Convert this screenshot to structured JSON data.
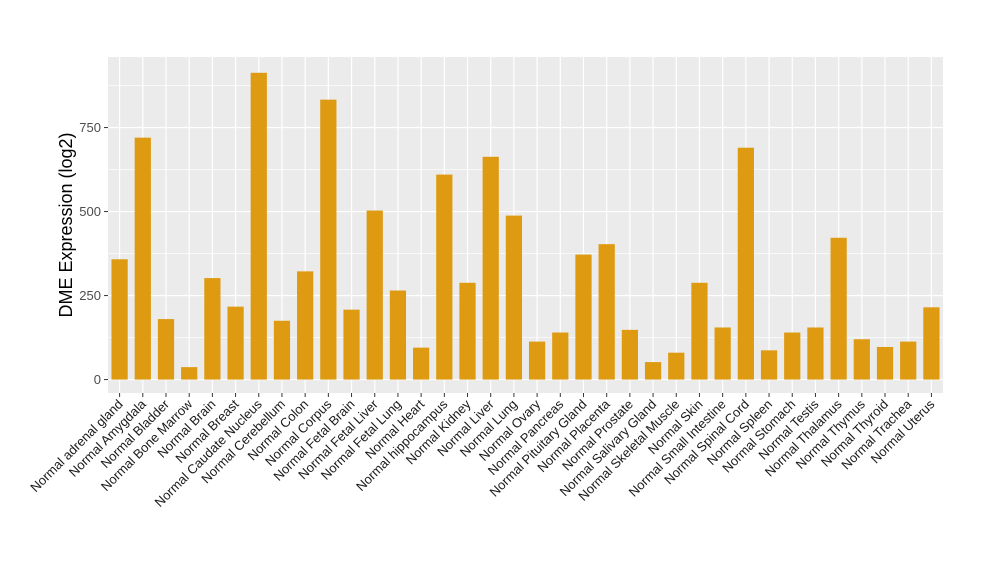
{
  "chart_data": {
    "type": "bar",
    "title": "",
    "xlabel": "",
    "ylabel": "DME Expression (log2)",
    "ylim": [
      -40,
      960
    ],
    "yticks": [
      0,
      250,
      500,
      750
    ],
    "grid": true,
    "legend": "none",
    "bar_color": "#DE9B12",
    "panel_color": "#EBEBEB",
    "categories": [
      "Normal adrenal gland",
      "Normal Amygdala",
      "Normal Bladder",
      "Normal Bone Marrow",
      "Normal Brain",
      "Normal Breast",
      "Normal Caudate Nucleus",
      "Normal Cerebellum",
      "Normal Colon",
      "Normal Corpus",
      "Normal Fetal Brain",
      "Normal Fetal Liver",
      "Normal Fetal Lung",
      "Normal Heart",
      "Normal hippocampus",
      "Normal Kidney",
      "Normal Liver",
      "Normal Lung",
      "Normal Ovary",
      "Normal Pancreas",
      "Normal Pituitary Gland",
      "Normal Placenta",
      "Normal Prostate",
      "Normal Salivary Gland",
      "Normal Skeletal Muscle",
      "Normal Skin",
      "Normal Small Intestine",
      "Normal Spinal Cord",
      "Normal Spleen",
      "Normal Stomach",
      "Normal Testis",
      "Normal Thalamus",
      "Normal Thymus",
      "Normal Thyroid",
      "Normal Trachea",
      "Normal Uterus"
    ],
    "values": [
      358,
      720,
      180,
      37,
      302,
      217,
      913,
      175,
      322,
      833,
      208,
      503,
      265,
      95,
      610,
      288,
      663,
      488,
      113,
      140,
      372,
      403,
      148,
      52,
      80,
      288,
      155,
      690,
      87,
      140,
      155,
      422,
      120,
      97,
      113,
      215
    ]
  }
}
